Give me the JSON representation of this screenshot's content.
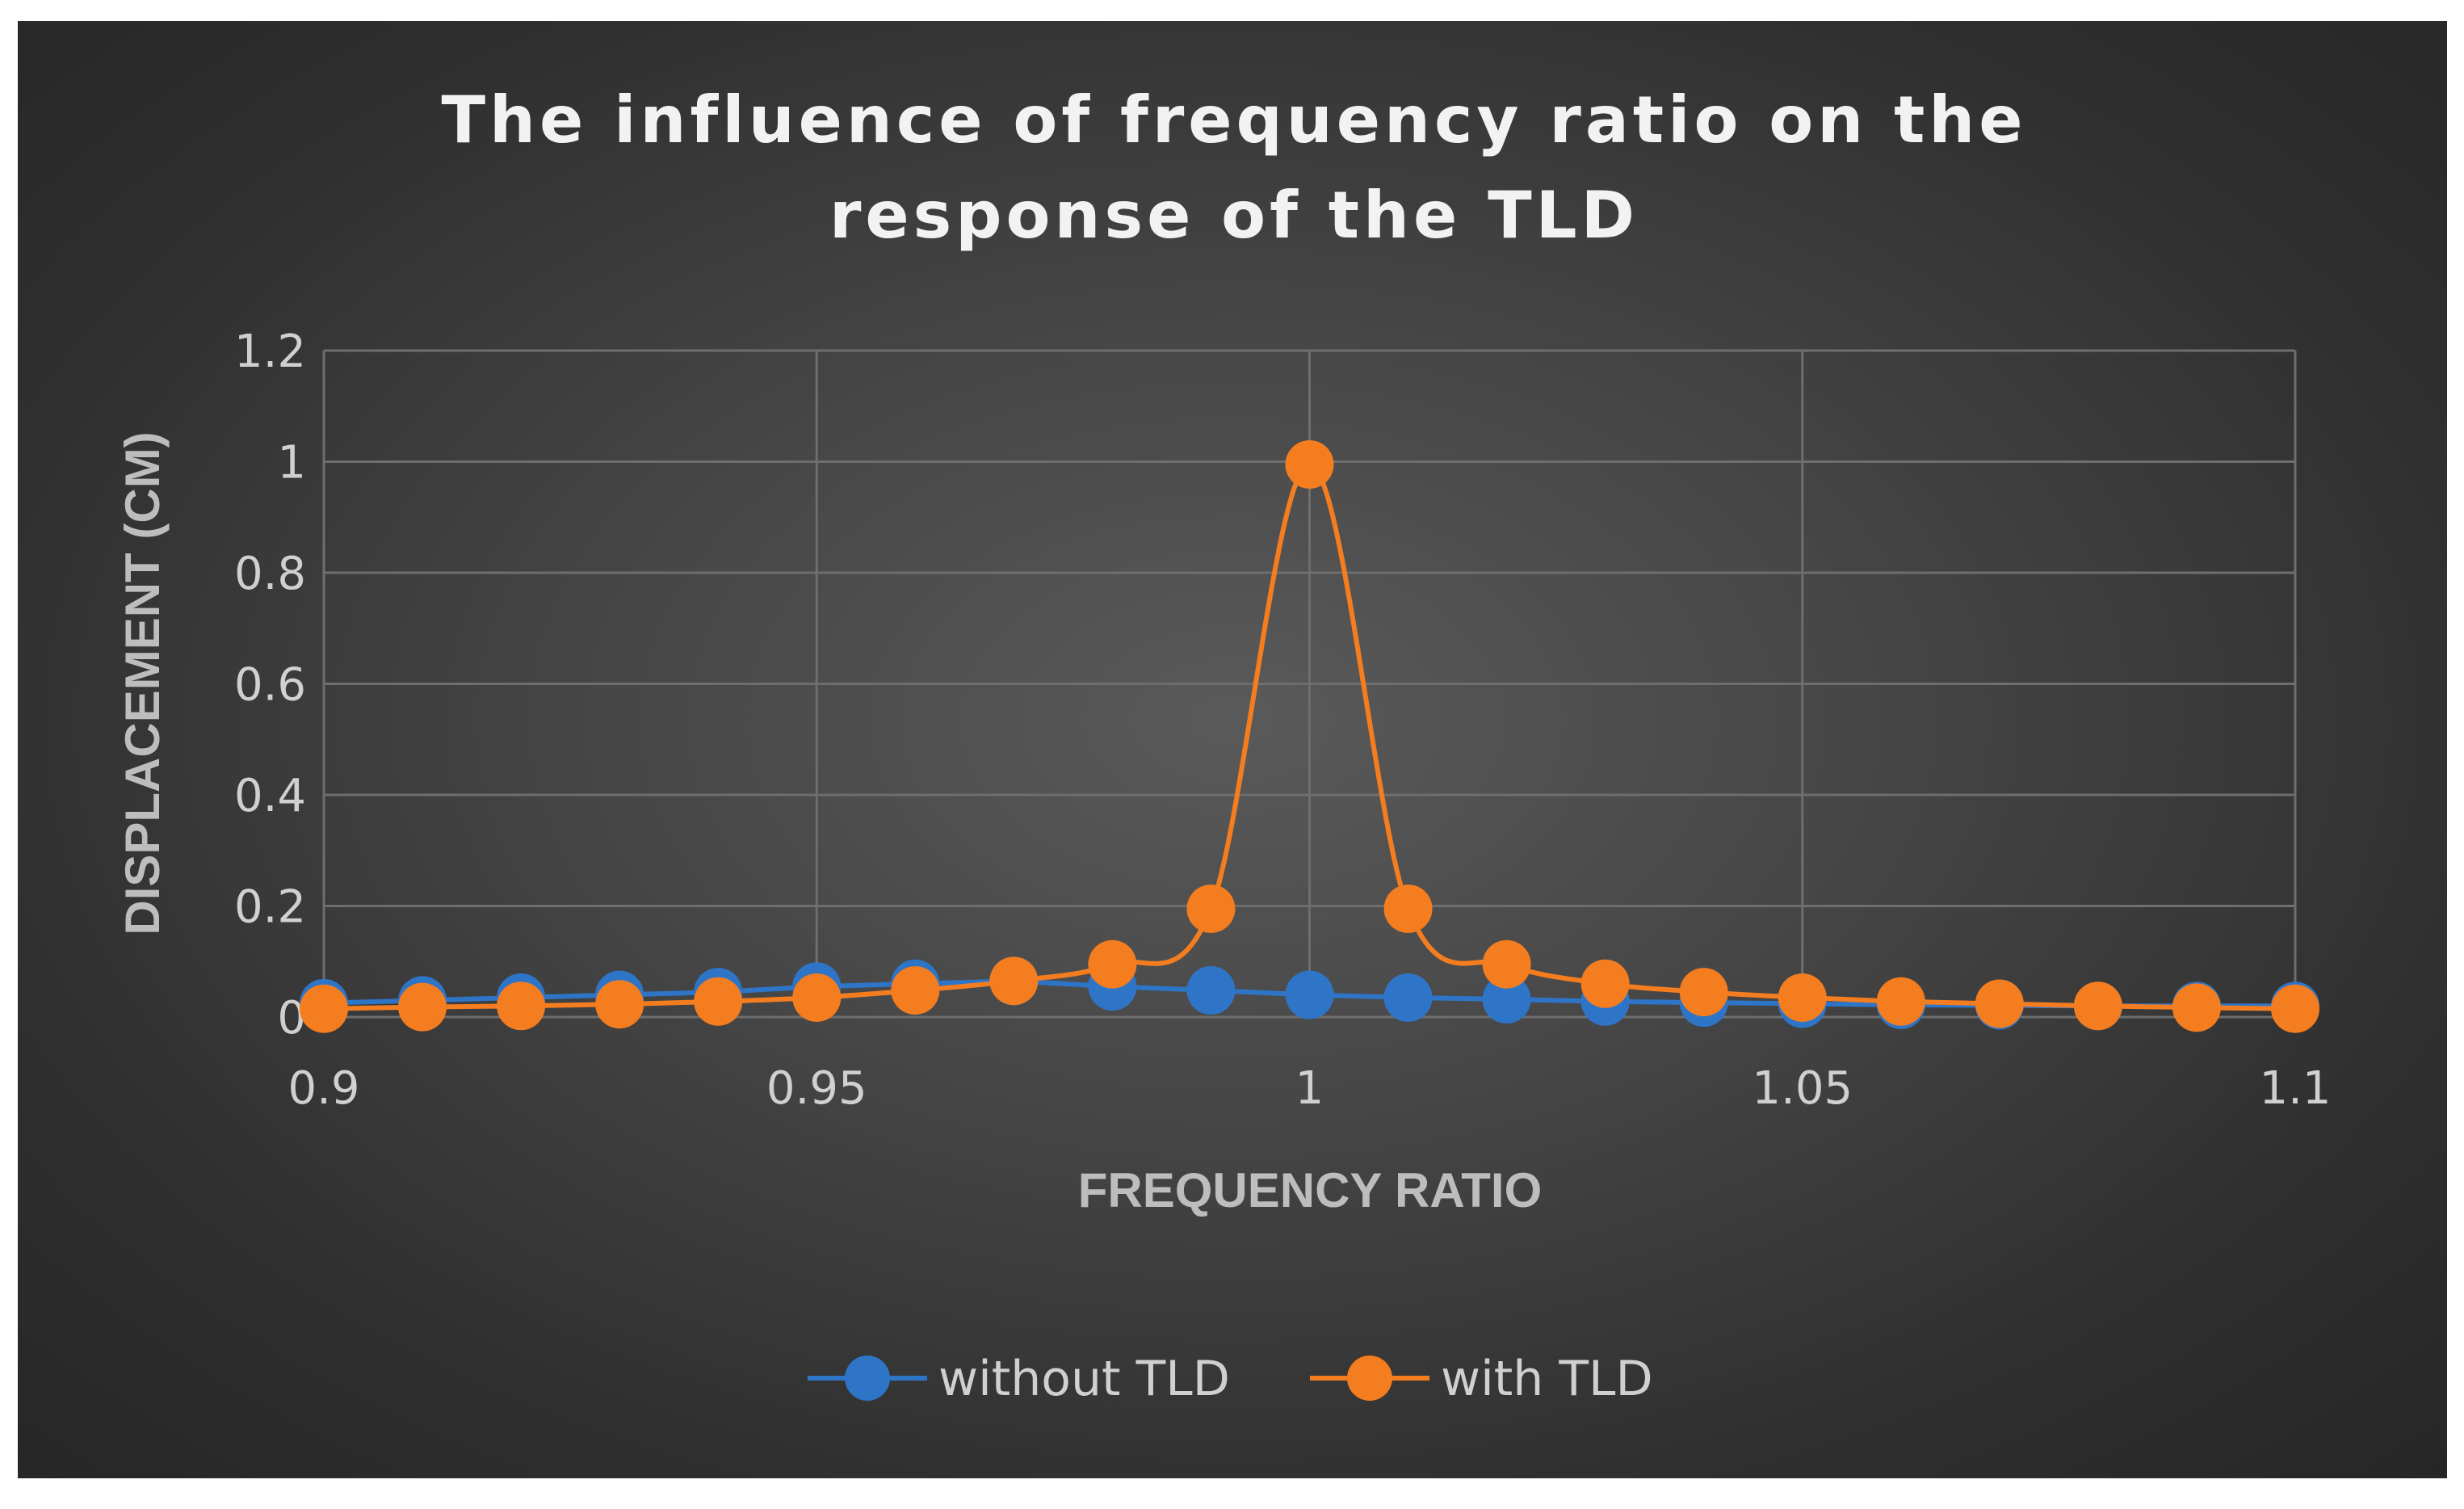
{
  "chart_data": {
    "type": "line",
    "title_lines": [
      "The influence of frequency ratio on the",
      "response of the TLD"
    ],
    "xlabel": "FREQUENCY RATIO",
    "ylabel": "DISPLACEMENT (CM)",
    "xlim": [
      0.9,
      1.1
    ],
    "ylim": [
      0,
      1.2
    ],
    "xticks": [
      "0.9",
      "0.95",
      "1",
      "1.05",
      "1.1"
    ],
    "yticks": [
      "0",
      "0.2",
      "0.4",
      "0.6",
      "0.8",
      "1",
      "1.2"
    ],
    "grid": true,
    "legend_position": "bottom-center",
    "x": [
      0.9,
      0.91,
      0.92,
      0.93,
      0.94,
      0.95,
      0.96,
      0.97,
      0.98,
      0.99,
      1.0,
      1.01,
      1.02,
      1.03,
      1.04,
      1.05,
      1.06,
      1.07,
      1.08,
      1.09,
      1.1
    ],
    "series": [
      {
        "name": "without TLD",
        "color": "#2e75c8",
        "smooth": false,
        "values": [
          0.025,
          0.03,
          0.035,
          0.04,
          0.045,
          0.055,
          0.06,
          0.065,
          0.055,
          0.048,
          0.04,
          0.035,
          0.032,
          0.028,
          0.026,
          0.024,
          0.022,
          0.021,
          0.02,
          0.02,
          0.02
        ]
      },
      {
        "name": "with TLD",
        "color": "#f47d20",
        "smooth": true,
        "values": [
          0.015,
          0.018,
          0.02,
          0.023,
          0.028,
          0.035,
          0.048,
          0.065,
          0.095,
          0.195,
          0.995,
          0.195,
          0.095,
          0.06,
          0.045,
          0.035,
          0.028,
          0.024,
          0.02,
          0.017,
          0.015
        ]
      }
    ]
  }
}
